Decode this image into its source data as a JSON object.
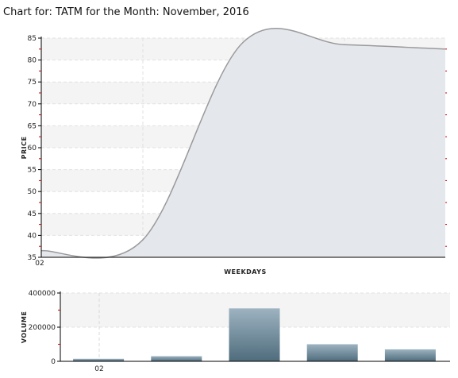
{
  "title": "Chart for: TATM for the Month: November, 2016",
  "chart_data": [
    {
      "type": "area",
      "xlabel": "WEEKDAYS",
      "ylabel": "PRICE",
      "ylim": [
        35,
        85
      ],
      "yticks": [
        "85",
        "80",
        "75",
        "70",
        "65",
        "60",
        "55",
        "50",
        "45",
        "40",
        "35"
      ],
      "xticks": [
        "02"
      ],
      "grid": true,
      "x": [
        0,
        1,
        2,
        3,
        4
      ],
      "values": [
        36.5,
        39,
        84,
        83.5,
        82.5
      ],
      "colors": {
        "fill": "#e4e7ec",
        "line": "#9a9a9a",
        "band": "#f4f4f4",
        "marker": "#cc0000"
      }
    },
    {
      "type": "bar",
      "xlabel": "",
      "ylabel": "VOLUME",
      "ylim": [
        0,
        400000
      ],
      "yticks": [
        "400000",
        "200000",
        "0"
      ],
      "xticks": [
        "02"
      ],
      "grid": true,
      "values": [
        15000,
        30000,
        310000,
        100000,
        70000
      ],
      "colors": {
        "bar_top": "#9db3c1",
        "bar_bottom": "#4f6c7c"
      }
    }
  ]
}
